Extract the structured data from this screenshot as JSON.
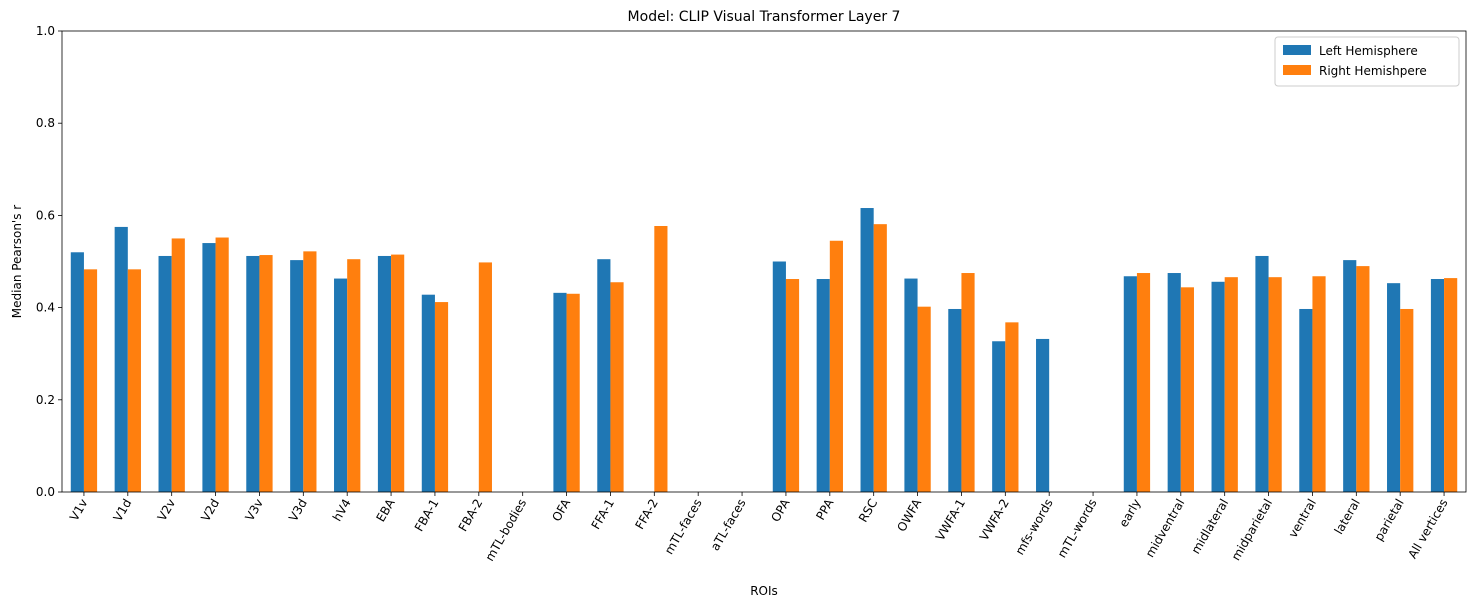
{
  "chart_data": {
    "type": "bar",
    "title": "Model: CLIP Visual Transformer Layer 7",
    "xlabel": "ROIs",
    "ylabel": "Median Pearson's r",
    "ylim": [
      0,
      1
    ],
    "yticks": [
      0.0,
      0.2,
      0.4,
      0.6,
      0.8,
      1.0
    ],
    "ytick_labels": [
      "0.0",
      "0.2",
      "0.4",
      "0.6",
      "0.8",
      "1.0"
    ],
    "grid": false,
    "legend_position": "top-right",
    "categories": [
      "V1v",
      "V1d",
      "V2v",
      "V2d",
      "V3v",
      "V3d",
      "hV4",
      "EBA",
      "FBA-1",
      "FBA-2",
      "mTL-bodies",
      "OFA",
      "FFA-1",
      "FFA-2",
      "mTL-faces",
      "aTL-faces",
      "OPA",
      "PPA",
      "RSC",
      "OWFA",
      "VWFA-1",
      "VWFA-2",
      "mfs-words",
      "mTL-words",
      "early",
      "midventral",
      "midlateral",
      "midparietal",
      "ventral",
      "lateral",
      "parietal",
      "All vertices"
    ],
    "series": [
      {
        "name": "Left Hemisphere",
        "color": "#1f77b4",
        "values": [
          0.52,
          0.575,
          0.512,
          0.54,
          0.512,
          0.503,
          0.463,
          0.512,
          0.428,
          null,
          null,
          0.432,
          0.505,
          null,
          null,
          null,
          0.5,
          0.462,
          0.616,
          0.463,
          0.397,
          0.327,
          0.332,
          null,
          0.468,
          0.475,
          0.456,
          0.512,
          0.397,
          0.503,
          0.453,
          0.462
        ]
      },
      {
        "name": "Right Hemishpere",
        "color": "#ff7f0e",
        "values": [
          0.483,
          0.483,
          0.55,
          0.552,
          0.514,
          0.522,
          0.505,
          0.515,
          0.412,
          0.498,
          null,
          0.43,
          0.455,
          0.577,
          null,
          null,
          0.462,
          0.545,
          0.581,
          0.402,
          0.475,
          0.368,
          null,
          null,
          0.475,
          0.444,
          0.466,
          0.466,
          0.468,
          0.49,
          0.397,
          0.464
        ]
      }
    ]
  }
}
